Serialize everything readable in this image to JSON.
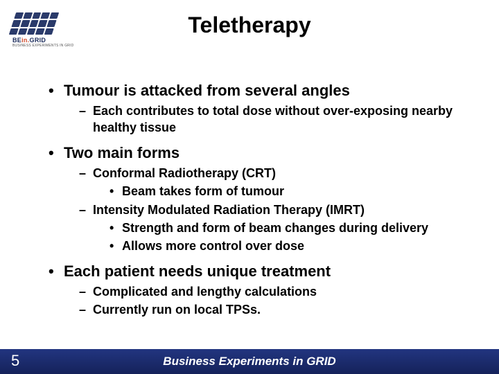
{
  "logo": {
    "brand_pre": "BE",
    "brand_mid": "in.",
    "brand_post": "GRID",
    "subtitle": "BUSINESS EXPERIMENTS IN GRID"
  },
  "title": "Teletherapy",
  "bullets": {
    "b1": "Tumour is attacked from several angles",
    "b1a": "Each contributes to total dose without over-exposing nearby healthy tissue",
    "b2": "Two main forms",
    "b2a": "Conformal Radiotherapy (CRT)",
    "b2a1": "Beam takes form of tumour",
    "b2b": "Intensity Modulated Radiation Therapy (IMRT)",
    "b2b1": "Strength and form of beam changes during delivery",
    "b2b2": "Allows more control over dose",
    "b3": "Each patient needs unique treatment",
    "b3a": "Complicated and lengthy calculations",
    "b3b": "Currently run on local TPSs."
  },
  "footer": {
    "text": "Business Experiments in GRID",
    "page": "5"
  },
  "colors": {
    "footer_bg": "#1a2a6a",
    "text": "#000000",
    "page_bg": "#ffffff"
  }
}
